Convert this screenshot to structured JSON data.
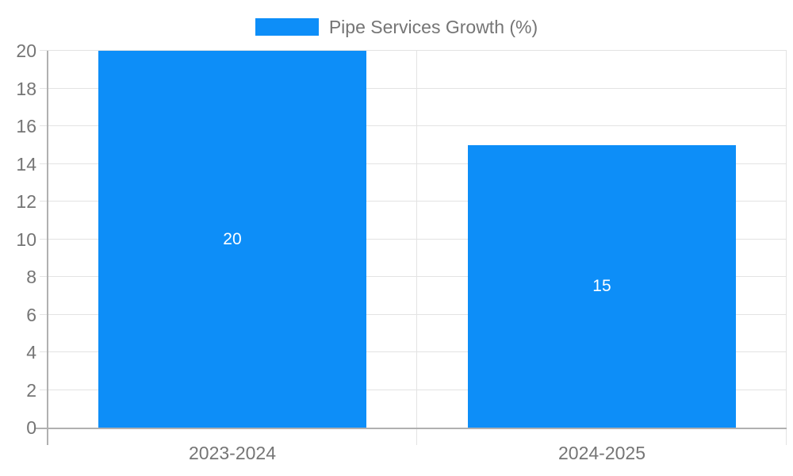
{
  "legend": {
    "label": "Pipe Services Growth (%)"
  },
  "colors": {
    "bar": "#0d8ef8",
    "grid": "#e3e3e3",
    "axis": "#b0b0b0",
    "tick_text": "#757575",
    "value_label": "#ffffff",
    "background": "#ffffff"
  },
  "chart_data": {
    "type": "bar",
    "title": "",
    "categories": [
      "2023-2024",
      "2024-2025"
    ],
    "series": [
      {
        "name": "Pipe Services Growth (%)",
        "values": [
          20,
          15
        ]
      }
    ],
    "value_labels": [
      "20",
      "15"
    ],
    "xlabel": "",
    "ylabel": "",
    "ylim": [
      0,
      20
    ],
    "yticks": [
      0,
      2,
      4,
      6,
      8,
      10,
      12,
      14,
      16,
      18,
      20
    ],
    "grid": true,
    "legend_position": "top-center",
    "value_label_position": "middle-of-bar"
  }
}
